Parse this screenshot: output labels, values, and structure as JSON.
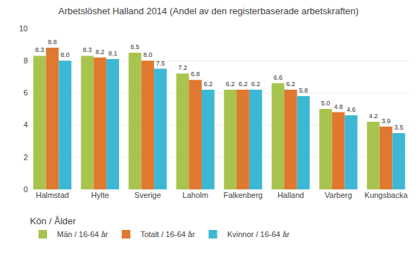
{
  "chart_data": {
    "type": "bar",
    "title": "Arbetslöshet Halland 2014 (Andel av den registerbaserade arbetskraften)",
    "categories": [
      "Halmstad",
      "Hylte",
      "Sverige",
      "Laholm",
      "Falkenberg",
      "Halland",
      "Varberg",
      "Kungsbacka"
    ],
    "series": [
      {
        "name": "Män / 16-64 år",
        "color": "#a8c44e",
        "values": [
          8.3,
          8.3,
          8.5,
          7.2,
          6.2,
          6.6,
          5.0,
          4.2
        ],
        "value_labels": [
          "8.3",
          "8.3",
          "8.5",
          "7.2",
          "6.2",
          "6.6",
          "5.0",
          "4.2"
        ]
      },
      {
        "name": "Totalt / 16-64 år",
        "color": "#e07830",
        "values": [
          8.8,
          8.2,
          8.0,
          6.8,
          6.2,
          6.2,
          4.8,
          3.9
        ],
        "value_labels": [
          "8.8",
          "8.2",
          "8.0",
          "6.8",
          "6.2",
          "6.2",
          "4.8",
          "3.9"
        ]
      },
      {
        "name": "Kvinnor / 16-64 år",
        "color": "#3db8d4",
        "values": [
          8.0,
          8.1,
          7.5,
          6.2,
          6.2,
          5.8,
          4.6,
          3.5
        ],
        "value_labels": [
          "8.0",
          "8.1",
          "7.5",
          "6.2",
          "6.2",
          "5.8",
          "4.6",
          "3.5"
        ]
      }
    ],
    "legend_title": "Kön / Ålder",
    "legend": "bottom",
    "ylim": [
      0,
      10
    ],
    "yticks": [
      0,
      2,
      4,
      6,
      8,
      10
    ],
    "grid": true,
    "data_labels": true
  }
}
